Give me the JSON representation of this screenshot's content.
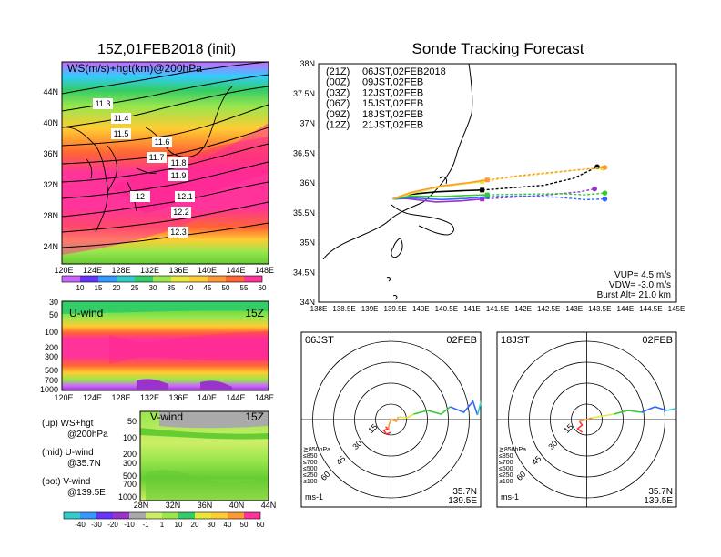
{
  "colors": {
    "land": "#000000",
    "magenta": "#ff33cc",
    "hotpink": "#ff3399",
    "red": "#ff3333",
    "orange": "#ff9933",
    "yellow": "#e8e83a",
    "green": "#33cc33",
    "cyan": "#33cccc",
    "blue": "#3366ff",
    "purple": "#9933cc",
    "grey": "#aaaaaa"
  },
  "left": {
    "title": "15Z,01FEB2018 (init)",
    "map_label": "WS(m/s)+hgt(km)@200hPa",
    "lat_labels": [
      "44N",
      "40N",
      "36N",
      "32N",
      "28N",
      "24N"
    ],
    "lon_labels": [
      "120E",
      "124E",
      "128E",
      "132E",
      "136E",
      "140E",
      "144E",
      "148E"
    ],
    "contour_labels": [
      "11.3",
      "11.4",
      "11.5",
      "11.6",
      "11.7",
      "11.8",
      "11.9",
      "12",
      "12.1",
      "12.2",
      "12.3"
    ],
    "ws_colorbar": [
      "10",
      "15",
      "20",
      "25",
      "30",
      "35",
      "40",
      "45",
      "50",
      "55",
      "60"
    ],
    "uwind": {
      "label": "U-wind",
      "time": "15Z",
      "p_labels": [
        "30",
        "50",
        "100",
        "200",
        "300",
        "500",
        "700",
        "1000"
      ],
      "lon_labels": [
        "120E",
        "124E",
        "128E",
        "132E",
        "136E",
        "140E",
        "144E",
        "148E"
      ]
    },
    "vwind": {
      "label": "V-wind",
      "time": "15Z",
      "p_labels": [
        "50",
        "100",
        "200",
        "300",
        "500",
        "700",
        "1000"
      ],
      "lat_labels": [
        "28N",
        "32N",
        "36N",
        "40N",
        "44N"
      ]
    },
    "legend_lines": [
      "(up) WS+hgt",
      "@200hPa",
      "(mid) U-wind",
      "@35.7N",
      "(bot) V-wind",
      "@139.5E"
    ],
    "wind_colorbar": [
      "-40",
      "-30",
      "-20",
      "-10",
      "-1",
      "1",
      "10",
      "20",
      "30",
      "40",
      "50",
      "60"
    ]
  },
  "right": {
    "title": "Sonde Tracking Forecast",
    "launches": [
      {
        "utc": "(21Z)",
        "jst": "06JST,02FEB2018",
        "color": "#000000"
      },
      {
        "utc": "(00Z)",
        "jst": "09JST,02FEB",
        "color": "#9933cc"
      },
      {
        "utc": "(03Z)",
        "jst": "12JST,02FEB",
        "color": "#3366ff"
      },
      {
        "utc": "(06Z)",
        "jst": "15JST,02FEB",
        "color": "#33cc33"
      },
      {
        "utc": "(09Z)",
        "jst": "18JST,02FEB",
        "color": "#e8e83a"
      },
      {
        "utc": "(12Z)",
        "jst": "21JST,02FEB",
        "color": "#ff9933"
      }
    ],
    "lat_labels": [
      "38N",
      "37.5N",
      "37N",
      "36.5N",
      "36N",
      "35.5N",
      "35N",
      "34.5N",
      "34N"
    ],
    "lon_labels": [
      "138E",
      "138.5E",
      "139E",
      "139.5E",
      "140E",
      "140.5E",
      "141E",
      "141.5E",
      "142E",
      "142.5E",
      "143E",
      "143.5E",
      "144E",
      "144.5E",
      "145E"
    ],
    "info": [
      "VUP=  4.5 m/s",
      "VDW= -3.0 m/s",
      "Burst Alt= 21.0 km"
    ],
    "hodo1": {
      "time": "06JST",
      "date": "02FEB",
      "loc1": "35.7N",
      "loc2": "139.5E",
      "unit": "ms-1"
    },
    "hodo2": {
      "time": "18JST",
      "date": "02FEB",
      "loc1": "35.7N",
      "loc2": "139.5E",
      "unit": "ms-1"
    },
    "hodo_ring_labels": [
      "15",
      "30",
      "45",
      "60"
    ],
    "hodo_legend": [
      {
        "text": "≧850hPa",
        "color": "#ff3333"
      },
      {
        "text": "≤850",
        "color": "#ff9933"
      },
      {
        "text": "≤700",
        "color": "#e8e83a"
      },
      {
        "text": "≤500",
        "color": "#33cc33"
      },
      {
        "text": "≤250",
        "color": "#33cccc"
      },
      {
        "text": "≤100",
        "color": "#3366ff"
      }
    ]
  },
  "chart_data": [
    {
      "type": "line",
      "title": "Sonde Tracking Forecast",
      "xlabel": "",
      "ylabel": "",
      "xlim": [
        138,
        145
      ],
      "ylim": [
        34,
        38
      ],
      "series": [
        {
          "name": "(21Z) 06JST,02FEB2018",
          "x": [
            139.45,
            139.7,
            140.3,
            140.8,
            141.2,
            141.8,
            142.4,
            143.0,
            143.45
          ],
          "y": [
            35.73,
            35.8,
            35.85,
            35.87,
            35.88,
            35.92,
            35.96,
            36.08,
            36.27
          ]
        },
        {
          "name": "(00Z) 09JST,02FEB",
          "x": [
            139.45,
            139.7,
            140.3,
            140.8,
            141.2,
            141.8,
            142.5,
            143.1,
            143.4
          ],
          "y": [
            35.73,
            35.74,
            35.68,
            35.7,
            35.73,
            35.76,
            35.8,
            35.85,
            35.9
          ]
        },
        {
          "name": "(03Z) 12JST,02FEB",
          "x": [
            139.45,
            139.8,
            140.4,
            140.9,
            141.3,
            142.0,
            142.7,
            143.2,
            143.6
          ],
          "y": [
            35.73,
            35.75,
            35.72,
            35.74,
            35.77,
            35.78,
            35.76,
            35.72,
            35.73
          ]
        },
        {
          "name": "(06Z) 15JST,02FEB",
          "x": [
            139.45,
            139.8,
            140.4,
            140.9,
            141.3,
            142.0,
            142.7,
            143.2,
            143.6
          ],
          "y": [
            35.73,
            35.78,
            35.77,
            35.79,
            35.8,
            35.81,
            35.82,
            35.8,
            35.83
          ]
        },
        {
          "name": "(09Z) 18JST,02FEB",
          "x": [
            139.45,
            139.8,
            140.3,
            140.8,
            141.2,
            141.8,
            142.5,
            143.1,
            143.55
          ],
          "y": [
            35.73,
            35.82,
            35.92,
            35.98,
            36.02,
            36.1,
            36.16,
            36.22,
            36.25
          ]
        },
        {
          "name": "(12Z) 21JST,02FEB",
          "x": [
            139.45,
            139.8,
            140.4,
            140.9,
            141.3,
            141.9,
            142.6,
            143.2,
            143.6
          ],
          "y": [
            35.73,
            35.84,
            35.95,
            36.0,
            36.05,
            36.12,
            36.18,
            36.23,
            36.26
          ]
        }
      ]
    }
  ]
}
